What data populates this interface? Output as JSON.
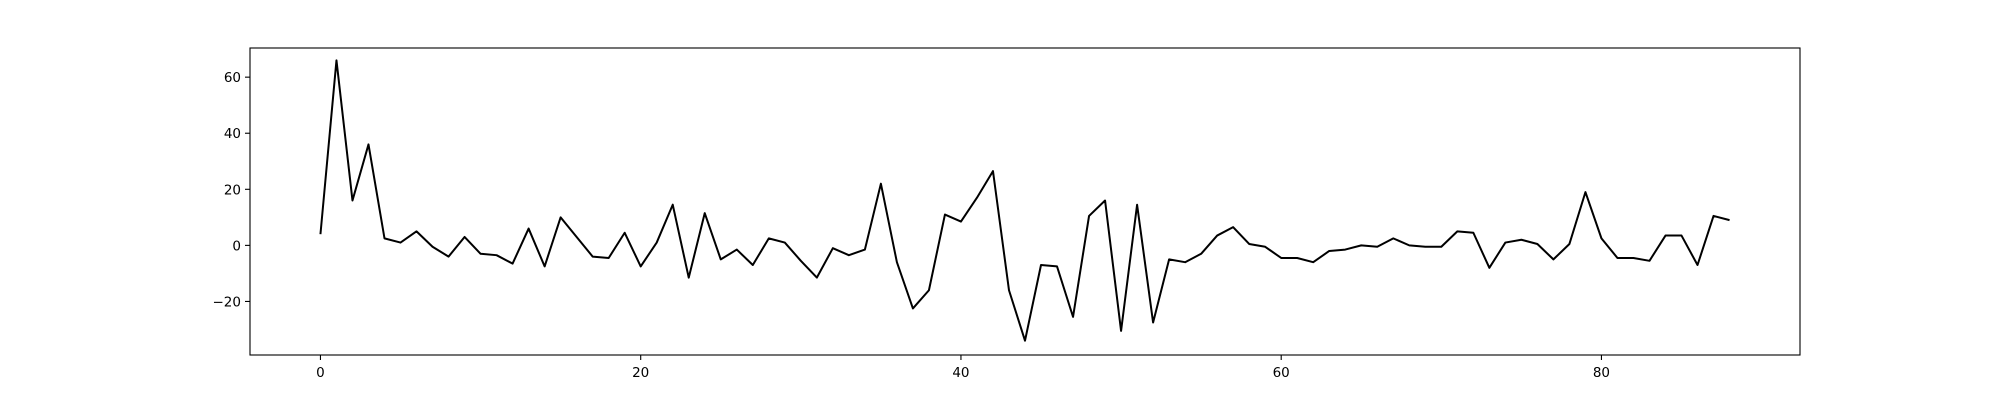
{
  "chart_data": {
    "type": "line",
    "title": "",
    "xlabel": "",
    "ylabel": "",
    "xlim": [
      -4.4,
      92.4
    ],
    "ylim": [
      -39.1,
      70.4
    ],
    "xticks": [
      0,
      20,
      40,
      60,
      80
    ],
    "yticks": [
      -20,
      0,
      20,
      40,
      60
    ],
    "xtick_labels": [
      "0",
      "20",
      "40",
      "60",
      "80"
    ],
    "ytick_labels": [
      "−20",
      "0",
      "20",
      "40",
      "60"
    ],
    "grid": false,
    "legend": "none",
    "line_color": "#000000",
    "series": [
      {
        "x": [
          0,
          1,
          2,
          3,
          4,
          5,
          6,
          7,
          8,
          9,
          10,
          11,
          12,
          13,
          14,
          15,
          16,
          17,
          18,
          19,
          20,
          21,
          22,
          23,
          24,
          25,
          26,
          27,
          28,
          29,
          30,
          31,
          32,
          33,
          34,
          35,
          36,
          37,
          38,
          39,
          40,
          41,
          42,
          43,
          44,
          45,
          46,
          47,
          48,
          49,
          50,
          51,
          52,
          53,
          54,
          55,
          56,
          57,
          58,
          59,
          60,
          61,
          62,
          63,
          64,
          65,
          66,
          67,
          68,
          69,
          70,
          71,
          72,
          73,
          74,
          75,
          76,
          77,
          78,
          79,
          80,
          81,
          82,
          83,
          84,
          85,
          86,
          87,
          88
        ],
        "y": [
          4,
          66,
          16,
          36,
          2.5,
          1,
          5,
          -0.5,
          -4,
          3,
          -3,
          -3.5,
          -6.5,
          6,
          -7.5,
          10,
          3,
          -4,
          -4.5,
          4.5,
          -7.5,
          1,
          14.5,
          -11.5,
          11.5,
          -5,
          -1.5,
          -7,
          2.5,
          1,
          -5.5,
          -11.5,
          -1,
          -3.5,
          -1.5,
          22,
          -6,
          -22.5,
          -16,
          11,
          8.5,
          17,
          26.5,
          -16,
          -34,
          -7,
          -7.5,
          -25.5,
          10.5,
          16,
          -30.5,
          14.5,
          -27.5,
          -5,
          -6,
          -3,
          3.5,
          6.5,
          0.5,
          -0.5,
          -4.5,
          -4.5,
          -6,
          -2,
          -1.5,
          0,
          -0.5,
          2.5,
          0,
          -0.5,
          -0.5,
          5,
          4.5,
          -8,
          1,
          2,
          0.5,
          -5,
          0.5,
          19,
          2.5,
          -4.5,
          -4.5,
          -5.5,
          3.5,
          3.5,
          -7,
          10.5,
          9
        ]
      }
    ]
  }
}
